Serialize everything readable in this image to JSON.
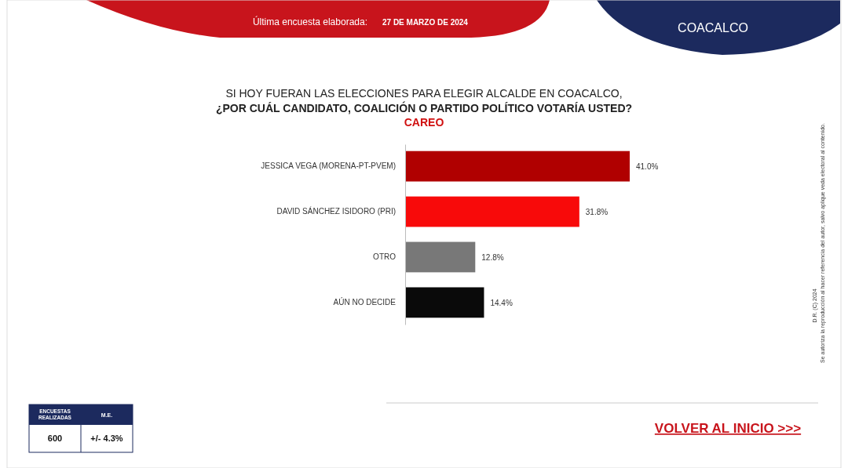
{
  "chart_data": {
    "type": "bar",
    "orientation": "horizontal",
    "title": "SI HOY FUERAN LAS ELECCIONES PARA ELEGIR ALCALDE EN COACALCO,",
    "subtitle": "¿POR CUÁL CANDIDATO, COALICIÓN O PARTIDO POLÍTICO VOTARÍA USTED?",
    "categories": [
      "JESSICA VEGA (MORENA-PT-PVEM)",
      "DAVID SÁNCHEZ ISIDORO (PRI)",
      "OTRO",
      "AÚN NO DECIDE"
    ],
    "values": [
      41.0,
      31.8,
      12.8,
      14.4
    ],
    "colors": [
      "#b00000",
      "#f80a0a",
      "#787878",
      "#0a0a0a"
    ],
    "value_labels": [
      "41.0%",
      "31.8%",
      "12.8%",
      "14.4%"
    ],
    "annotations": [
      "Última encuesta elaborada:",
      "27 DE MARZO DE 2024",
      "COACALCO",
      "CAREO",
      "ENCUESTAS REALIZADAS",
      "M.E.",
      "600",
      "+/- 4.3%",
      "VOLVER AL INICIO >>>",
      "D.R. (C) 2024",
      "Se autoriza la reproducción al hacer referencia del autor, salvo aplique veda electoral al contenido."
    ]
  }
}
